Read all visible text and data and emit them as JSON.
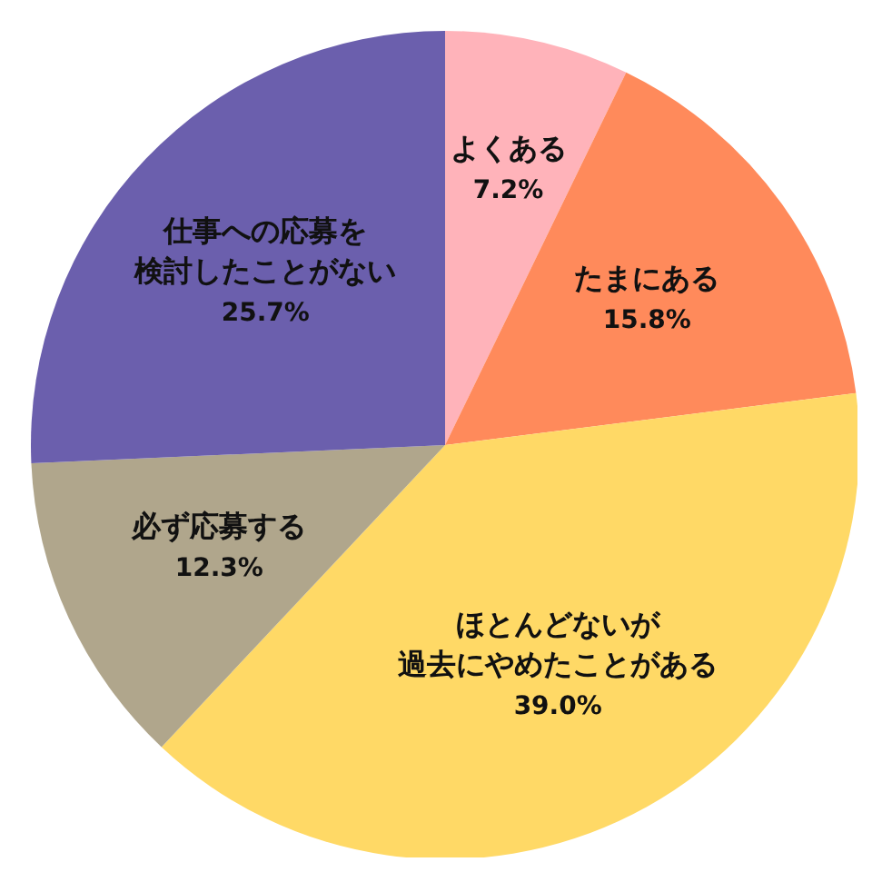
{
  "chart_data": {
    "type": "pie",
    "categories": [
      "よくある",
      "たまにある",
      "ほとんどないが過去にやめたことがある",
      "必ず応募する",
      "仕事への応募を検討したことがない"
    ],
    "values": [
      7.2,
      15.8,
      39.0,
      12.3,
      25.7
    ],
    "colors": [
      "#ffb3ba",
      "#ff8a5b",
      "#ffd966",
      "#b0a68c",
      "#6b5fad"
    ],
    "value_labels": [
      "7.2%",
      "15.8%",
      "39.0%",
      "12.3%",
      "25.7%"
    ]
  }
}
